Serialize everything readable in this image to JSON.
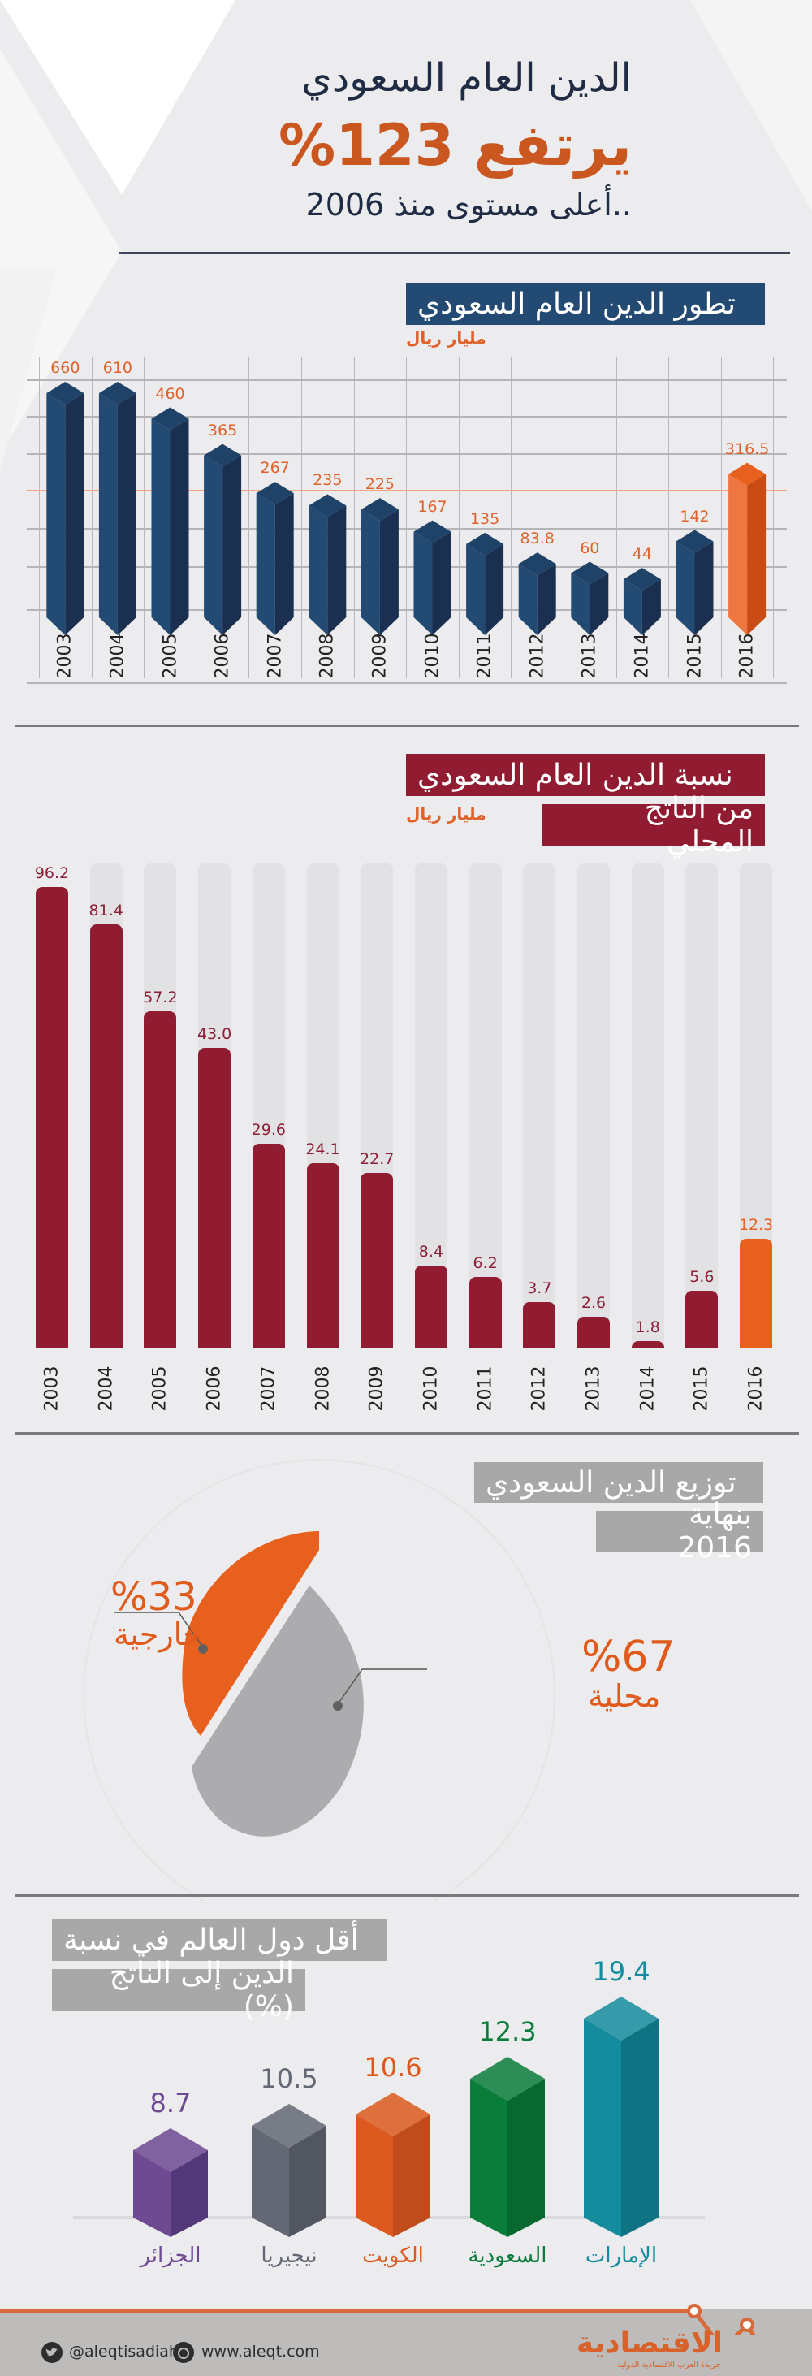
{
  "header": {
    "line1": "الدين العام السعودي",
    "line2": "يرتفع 123%",
    "line3": "..أعلى مستوى منذ 2006"
  },
  "colors": {
    "navy": "#234a72",
    "navy_dark": "#1b3050",
    "orange": "#e8601e",
    "maroon": "#911b31",
    "gray_box": "#a8a8a8",
    "text_dark": "#1f2c44"
  },
  "section1": {
    "title": "تطور الدين العام السعودي",
    "unit": "مليار ريال"
  },
  "section2": {
    "title_line1": "نسبة الدين العام السعودي",
    "title_line2": "من الناتج المحلي",
    "unit": "مليار ريال"
  },
  "section3": {
    "title_line1": "توزيع الدين السعودي",
    "title_line2": "بنهاية 2016",
    "external_pct": "%33",
    "external_label": "خارجية",
    "domestic_pct": "%67",
    "domestic_label": "محلية"
  },
  "section4": {
    "title_line1": "أقل دول العالم في نسبة",
    "title_line2": "الدين إلى الناتج (%)"
  },
  "footer": {
    "twitter": "@aleqtisadiah",
    "website": "www.aleqt.com",
    "logo": "الاقتصادية",
    "logo_sub": "جريدة العرب الاقتصادية الدولية"
  },
  "chart_data": [
    {
      "type": "bar",
      "title": "تطور الدين العام السعودي",
      "ylabel": "مليار ريال",
      "categories": [
        "2003",
        "2004",
        "2005",
        "2006",
        "2007",
        "2008",
        "2009",
        "2010",
        "2011",
        "2012",
        "2013",
        "2014",
        "2015",
        "2016"
      ],
      "values": [
        660,
        610,
        460,
        365,
        267,
        235,
        225,
        167,
        135,
        83.8,
        60,
        44,
        142,
        316.5
      ],
      "labels": [
        "660",
        "610",
        "460",
        "365",
        "267",
        "235",
        "225",
        "167",
        "135",
        "83.8",
        "60",
        "44",
        "142",
        "316.5"
      ],
      "highlight_index": 13,
      "grid": true
    },
    {
      "type": "bar",
      "title": "نسبة الدين العام السعودي من الناتج المحلي",
      "ylabel": "مليار ريال",
      "categories": [
        "2003",
        "2004",
        "2005",
        "2006",
        "2007",
        "2008",
        "2009",
        "2010",
        "2011",
        "2012",
        "2013",
        "2014",
        "2015",
        "2016"
      ],
      "values": [
        96.2,
        81.4,
        57.2,
        43.0,
        29.6,
        24.1,
        22.7,
        8.4,
        6.2,
        3.7,
        2.6,
        1.8,
        5.6,
        12.3
      ],
      "labels": [
        "96.2",
        "81.4",
        "57.2",
        "43.0",
        "29.6",
        "24.1",
        "22.7",
        "8.4",
        "6.2",
        "3.7",
        "2.6",
        "1.8",
        "5.6",
        "12.3"
      ],
      "highlight_index": 13,
      "grid": false
    },
    {
      "type": "pie",
      "title": "توزيع الدين السعودي بنهاية 2016",
      "categories": [
        "خارجية",
        "محلية"
      ],
      "values": [
        33,
        67
      ],
      "colors": [
        "#e8601e",
        "#acacae"
      ]
    },
    {
      "type": "bar",
      "title": "أقل دول العالم في نسبة الدين إلى الناتج (%)",
      "categories": [
        "الجزائر",
        "نيجيريا",
        "الكويت",
        "السعودية",
        "الإمارات"
      ],
      "values": [
        8.7,
        10.5,
        10.6,
        12.3,
        19.4
      ],
      "labels": [
        "8.7",
        "10.5",
        "10.6",
        "12.3",
        "19.4"
      ],
      "colors": [
        "#6e4a93",
        "#636874",
        "#dc5a1f",
        "#0a7d3b",
        "#158c9e"
      ]
    }
  ]
}
